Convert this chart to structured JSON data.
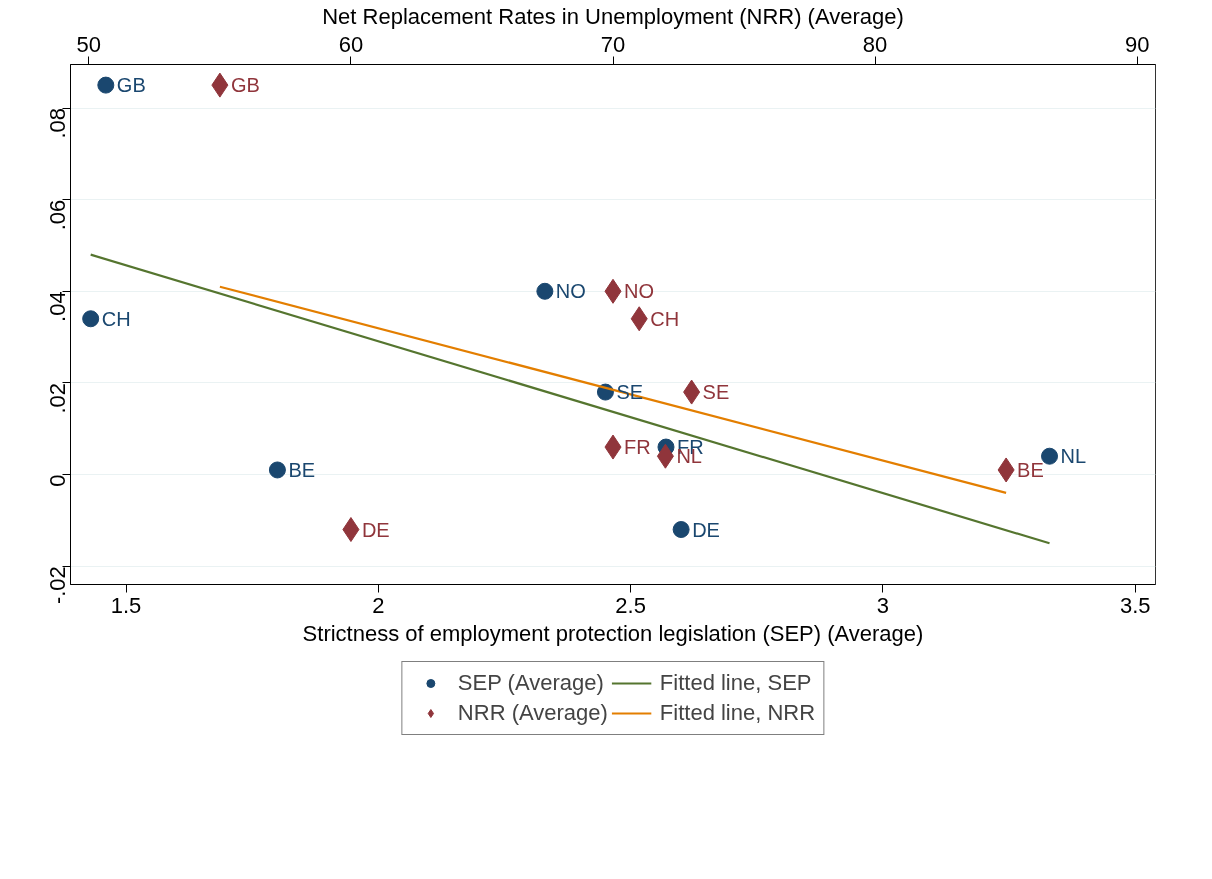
{
  "chart_data": {
    "type": "scatter",
    "xlabel": "Strictness of employment protection legislation (SEP) (Average)",
    "x2label": "Net Replacement Rates in Unemployment (NRR) (Average)",
    "xlim": [
      1.39,
      3.54
    ],
    "xticks": [
      1.5,
      2,
      2.5,
      3,
      3.5
    ],
    "x2lim": [
      49.3,
      90.7
    ],
    "x2ticks": [
      50,
      60,
      70,
      80,
      90
    ],
    "ylim": [
      -0.024,
      0.0895
    ],
    "yticks": [
      {
        "value": -0.02,
        "label": "-.02"
      },
      0,
      {
        "value": 0.02,
        "label": ".02"
      },
      {
        "value": 0.04,
        "label": ".04"
      },
      {
        "value": 0.06,
        "label": ".06"
      },
      {
        "value": 0.08,
        "label": ".08"
      }
    ],
    "grid": "y",
    "legend": "bottom",
    "series": [
      {
        "name": "SEP (Average)",
        "marker": "circle",
        "color": "#1a476f",
        "x": [
          1.46,
          1.43,
          2.33,
          1.8,
          2.45,
          2.57,
          2.6,
          3.33
        ],
        "values": [
          0.085,
          0.034,
          0.04,
          0.001,
          0.018,
          0.006,
          -0.012,
          0.004
        ],
        "value_labels": [
          "GB",
          "CH",
          "NO",
          "BE",
          "SE",
          "FR",
          "DE",
          "NL"
        ]
      },
      {
        "name": "NRR (Average)",
        "marker": "diamond",
        "color": "#90353b",
        "axis": "x2",
        "x": [
          55.0,
          71.0,
          70.0,
          85.0,
          73.0,
          70.0,
          60.0,
          72.0
        ],
        "values": [
          0.085,
          0.034,
          0.04,
          0.001,
          0.018,
          0.006,
          -0.012,
          0.004
        ],
        "value_labels": [
          "GB",
          "CH",
          "NO",
          "BE",
          "SE",
          "FR",
          "DE",
          "NL"
        ]
      },
      {
        "name": "Fitted line, SEP",
        "type": "line",
        "line_style": "solid",
        "color": "#55752f",
        "x": [
          1.43,
          3.33
        ],
        "values": [
          0.048,
          -0.015
        ]
      },
      {
        "name": "Fitted line, NRR",
        "type": "line",
        "line_style": "solid",
        "color": "#e37e00",
        "axis": "x2",
        "x": [
          55.0,
          85.0
        ],
        "values": [
          0.041,
          -0.004
        ]
      }
    ]
  }
}
